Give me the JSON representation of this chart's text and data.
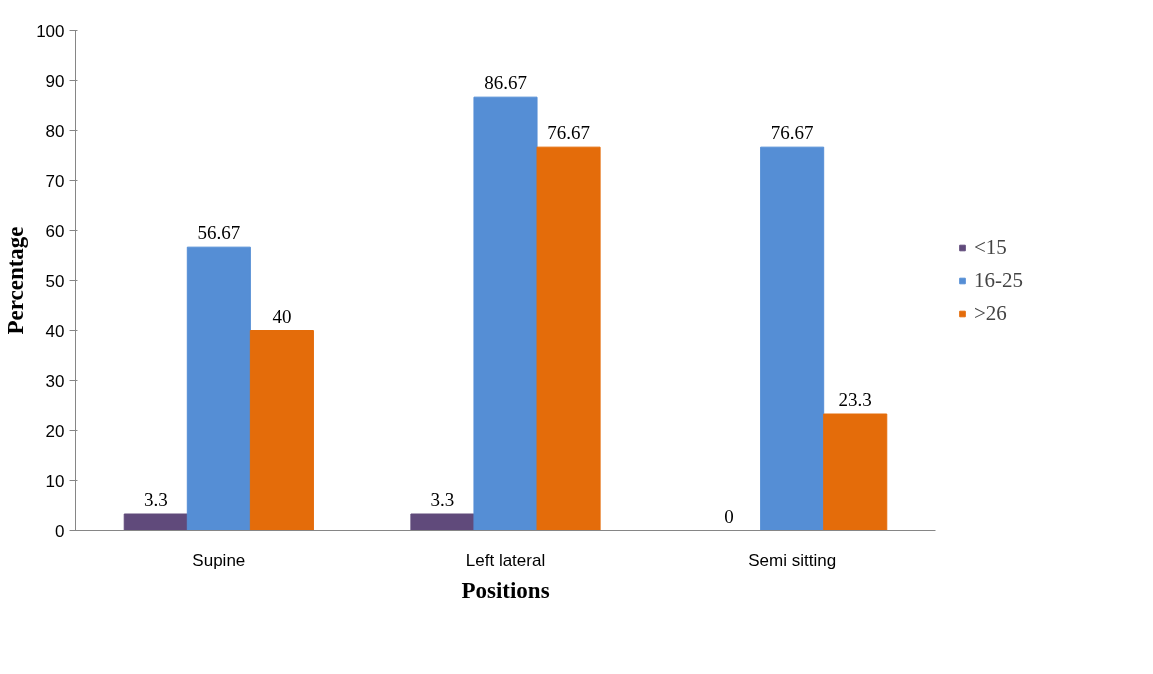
{
  "chart_data": {
    "type": "bar",
    "xlabel": "Positions",
    "ylabel": "Percentage",
    "categories": [
      "Supine",
      "Left lateral",
      "Semi sitting"
    ],
    "series": [
      {
        "name": "<15",
        "color": "#604a7b",
        "values": [
          3.3,
          3.3,
          0
        ]
      },
      {
        "name": "16-25",
        "color": "#558ed5",
        "values": [
          56.67,
          86.67,
          76.67
        ]
      },
      {
        "name": ">26",
        "color": "#e46c0a",
        "values": [
          40,
          76.67,
          23.3
        ]
      }
    ],
    "ylim": [
      0,
      100
    ],
    "yticks": [
      0,
      10,
      20,
      30,
      40,
      50,
      60,
      70,
      80,
      90,
      100
    ],
    "grid": false,
    "legend": "right",
    "data_labels": true
  }
}
